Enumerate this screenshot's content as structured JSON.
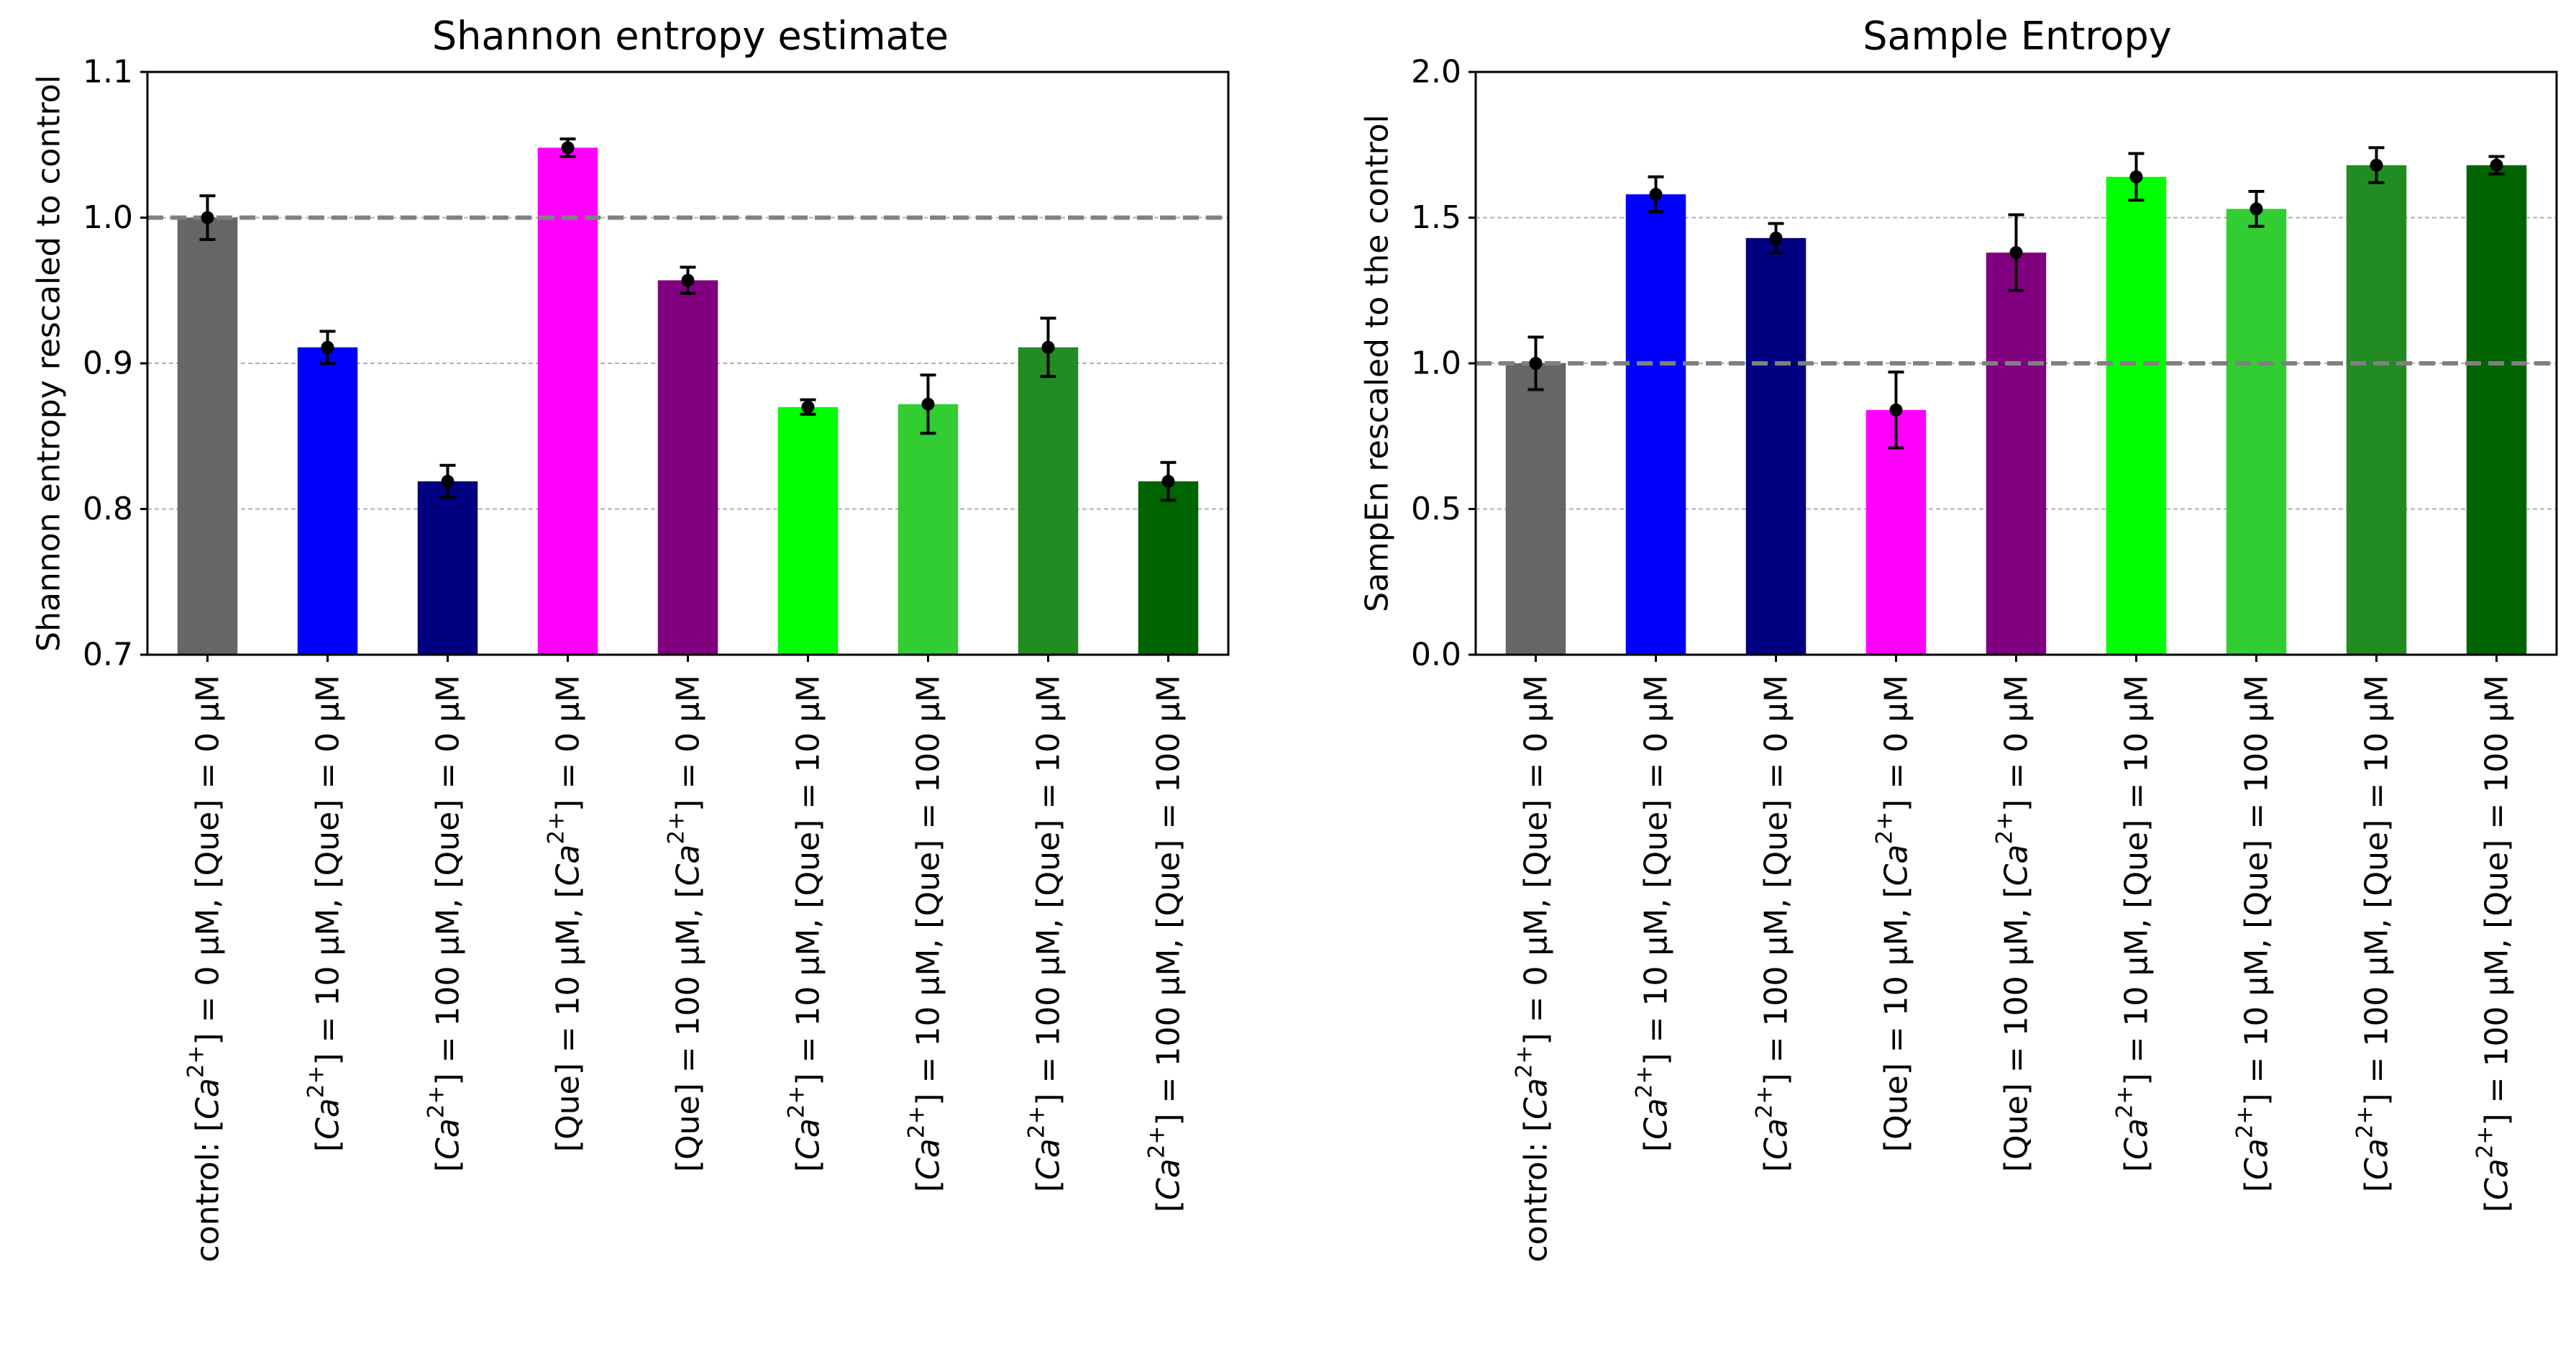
{
  "chart_data": [
    {
      "type": "bar",
      "title": "Shannon entropy estimate",
      "ylabel": "Shannon entropy rescaled to control",
      "xlabel": "",
      "ylim": [
        0.7,
        1.1
      ],
      "yticks": [
        0.7,
        0.8,
        0.9,
        1.0,
        1.1
      ],
      "ytick_labels": [
        "0.7",
        "0.8",
        "0.9",
        "1.0",
        "1.1"
      ],
      "grid": "y, dashed",
      "reference_line": 1.0,
      "categories": [
        {
          "pre": "control: [",
          "ion": "Ca",
          "sup": "2+",
          "post": "] = 0 μM, [Que] = 0 μM"
        },
        {
          "pre": "[",
          "ion": "Ca",
          "sup": "2+",
          "post": "] = 10 μM, [Que] = 0 μM"
        },
        {
          "pre": "[",
          "ion": "Ca",
          "sup": "2+",
          "post": "] = 100 μM, [Que] = 0 μM"
        },
        {
          "pre": "[Que] = 10 μM, [",
          "ion": "Ca",
          "sup": "2+",
          "post": "] = 0 μM"
        },
        {
          "pre": "[Que] = 100 μM, [",
          "ion": "Ca",
          "sup": "2+",
          "post": "] = 0 μM"
        },
        {
          "pre": "[",
          "ion": "Ca",
          "sup": "2+",
          "post": "] = 10 μM, [Que] = 10 μM"
        },
        {
          "pre": "[",
          "ion": "Ca",
          "sup": "2+",
          "post": "] = 10 μM, [Que] = 100 μM"
        },
        {
          "pre": "[",
          "ion": "Ca",
          "sup": "2+",
          "post": "] = 100 μM, [Que] = 10 μM"
        },
        {
          "pre": "[",
          "ion": "Ca",
          "sup": "2+",
          "post": "] = 100 μM, [Que] = 100 μM"
        }
      ],
      "values": [
        1.0,
        0.911,
        0.819,
        1.048,
        0.957,
        0.87,
        0.872,
        0.911,
        0.819
      ],
      "errors": [
        0.015,
        0.011,
        0.011,
        0.006,
        0.009,
        0.005,
        0.02,
        0.02,
        0.013
      ],
      "colors": [
        "#666666",
        "#0000ff",
        "#000080",
        "#ff00ff",
        "#800080",
        "#00ff00",
        "#32cd32",
        "#228b22",
        "#006400"
      ]
    },
    {
      "type": "bar",
      "title": "Sample Entropy",
      "ylabel": "SampEn rescaled to the control",
      "xlabel": "",
      "ylim": [
        0.0,
        2.0
      ],
      "yticks": [
        0.0,
        0.5,
        1.0,
        1.5,
        2.0
      ],
      "ytick_labels": [
        "0.0",
        "0.5",
        "1.0",
        "1.5",
        "2.0"
      ],
      "grid": "y, dashed",
      "reference_line": 1.0,
      "categories": [
        {
          "pre": "control: [",
          "ion": "Ca",
          "sup": "2+",
          "post": "] = 0 μM, [Que] = 0 μM"
        },
        {
          "pre": "[",
          "ion": "Ca",
          "sup": "2+",
          "post": "] = 10 μM, [Que] = 0 μM"
        },
        {
          "pre": "[",
          "ion": "Ca",
          "sup": "2+",
          "post": "] = 100 μM, [Que] = 0 μM"
        },
        {
          "pre": "[Que] = 10 μM, [",
          "ion": "Ca",
          "sup": "2+",
          "post": "] = 0 μM"
        },
        {
          "pre": "[Que] = 100 μM, [",
          "ion": "Ca",
          "sup": "2+",
          "post": "] = 0 μM"
        },
        {
          "pre": "[",
          "ion": "Ca",
          "sup": "2+",
          "post": "] = 10 μM, [Que] = 10 μM"
        },
        {
          "pre": "[",
          "ion": "Ca",
          "sup": "2+",
          "post": "] = 10 μM, [Que] = 100 μM"
        },
        {
          "pre": "[",
          "ion": "Ca",
          "sup": "2+",
          "post": "] = 100 μM, [Que] = 10 μM"
        },
        {
          "pre": "[",
          "ion": "Ca",
          "sup": "2+",
          "post": "] = 100 μM, [Que] = 100 μM"
        }
      ],
      "values": [
        1.0,
        1.58,
        1.43,
        0.84,
        1.38,
        1.64,
        1.53,
        1.68,
        1.68
      ],
      "errors": [
        0.09,
        0.06,
        0.05,
        0.13,
        0.13,
        0.08,
        0.06,
        0.06,
        0.03
      ],
      "colors": [
        "#666666",
        "#0000ff",
        "#000080",
        "#ff00ff",
        "#800080",
        "#00ff00",
        "#32cd32",
        "#228b22",
        "#006400"
      ]
    }
  ]
}
